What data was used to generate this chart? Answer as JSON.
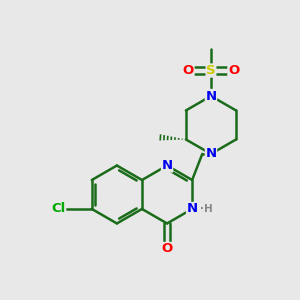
{
  "background_color": "#e8e8e8",
  "atom_colors": {
    "N": "#0000ee",
    "O": "#ff0000",
    "S": "#cccc00",
    "Cl": "#00aa00",
    "C": "#1a6b1a",
    "H": "#888888"
  },
  "bond_color": "#1a6b1a",
  "bond_width": 1.8,
  "figsize": [
    3.0,
    3.0
  ],
  "dpi": 100
}
